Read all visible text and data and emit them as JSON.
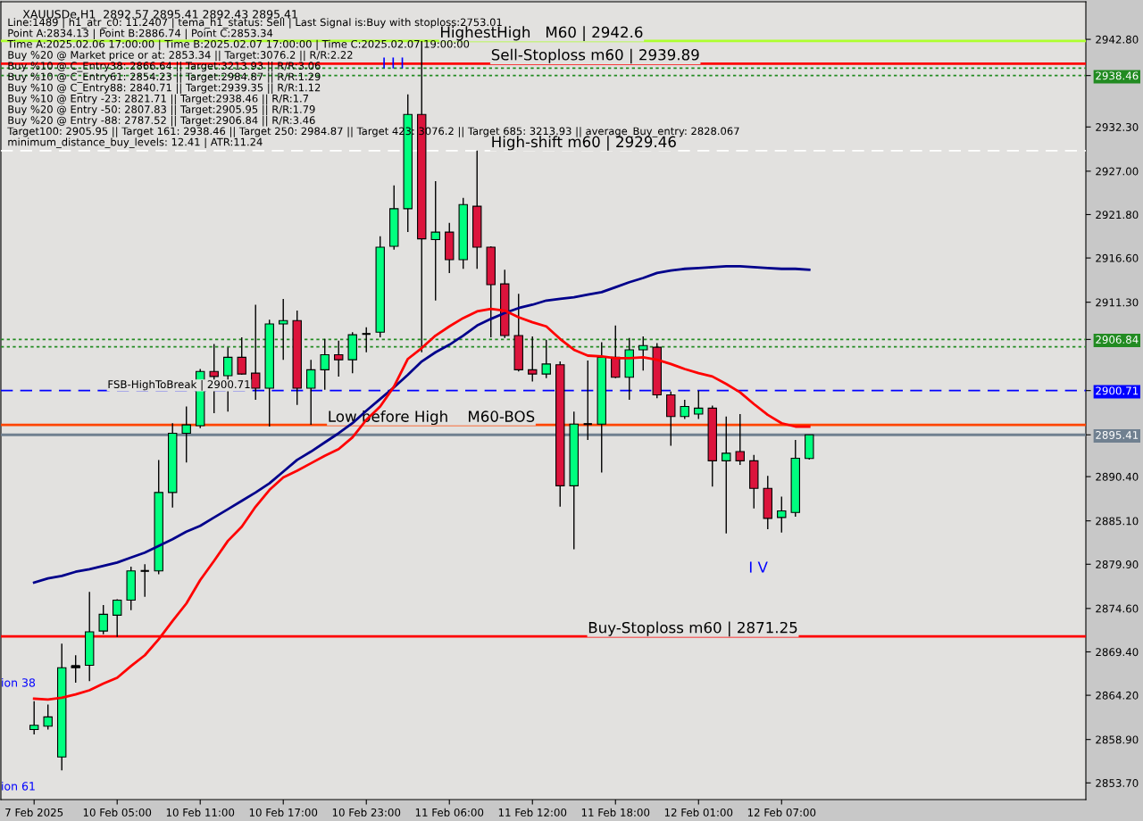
{
  "chart_data": {
    "type": "candlestick",
    "title": "XAUUSDe,H1  2892.57 2895.41 2892.43 2895.41",
    "categories": [
      "7 Feb 2025",
      null,
      null,
      null,
      null,
      null,
      "10 Feb 05:00",
      null,
      null,
      null,
      null,
      null,
      "10 Feb 11:00",
      null,
      null,
      null,
      null,
      null,
      "10 Feb 17:00",
      null,
      null,
      null,
      null,
      null,
      "10 Feb 23:00",
      null,
      null,
      null,
      null,
      null,
      "11 Feb 06:00",
      null,
      null,
      null,
      null,
      null,
      "11 Feb 12:00",
      null,
      null,
      null,
      null,
      null,
      "11 Feb 18:00",
      null,
      null,
      null,
      null,
      null,
      "12 Feb 01:00",
      null,
      null,
      null,
      null,
      null,
      "12 Feb 07:00",
      null,
      null
    ],
    "ohlc": [
      [
        2860.1,
        2863.5,
        2859.5,
        2860.6
      ],
      [
        2860.5,
        2863.1,
        2860.1,
        2861.6
      ],
      [
        2856.8,
        2870.4,
        2855.2,
        2867.5
      ],
      [
        2867.5,
        2869.0,
        2865.7,
        2867.7
      ],
      [
        2867.8,
        2876.6,
        2865.9,
        2871.8
      ],
      [
        2871.9,
        2875.0,
        2871.5,
        2873.9
      ],
      [
        2873.8,
        2875.7,
        2871.2,
        2875.6
      ],
      [
        2875.6,
        2879.6,
        2874.4,
        2879.1
      ],
      [
        2879.1,
        2879.9,
        2876.0,
        2879.2
      ],
      [
        2879.1,
        2892.4,
        2878.7,
        2888.5
      ],
      [
        2888.5,
        2896.8,
        2886.7,
        2895.6
      ],
      [
        2895.6,
        2898.8,
        2892.1,
        2896.6
      ],
      [
        2896.5,
        2903.3,
        2896.2,
        2903.0
      ],
      [
        2903.0,
        2906.3,
        2898.0,
        2902.4
      ],
      [
        2902.5,
        2905.9,
        2898.2,
        2904.7
      ],
      [
        2904.7,
        2907.1,
        2902.6,
        2902.7
      ],
      [
        2902.8,
        2911.0,
        2899.6,
        2901.0
      ],
      [
        2901.0,
        2909.2,
        2896.4,
        2908.7
      ],
      [
        2908.7,
        2911.7,
        2904.4,
        2909.1
      ],
      [
        2909.1,
        2910.3,
        2899.0,
        2901.0
      ],
      [
        2901.0,
        2904.4,
        2896.6,
        2903.2
      ],
      [
        2903.2,
        2906.9,
        2900.8,
        2905.0
      ],
      [
        2905.0,
        2906.7,
        2902.4,
        2904.4
      ],
      [
        2904.4,
        2907.7,
        2902.8,
        2907.4
      ],
      [
        2907.5,
        2908.3,
        2905.3,
        2907.6
      ],
      [
        2907.7,
        2919.2,
        2907.1,
        2917.9
      ],
      [
        2918.0,
        2925.3,
        2917.6,
        2922.5
      ],
      [
        2922.5,
        2936.2,
        2919.7,
        2933.8
      ],
      [
        2933.8,
        2942.6,
        2905.3,
        2918.9
      ],
      [
        2918.8,
        2925.8,
        2911.5,
        2919.7
      ],
      [
        2919.7,
        2920.8,
        2914.8,
        2916.4
      ],
      [
        2916.4,
        2923.8,
        2915.3,
        2923.0
      ],
      [
        2922.8,
        2929.46,
        2915.3,
        2917.9
      ],
      [
        2917.9,
        2918.0,
        2907.1,
        2913.4
      ],
      [
        2913.5,
        2915.2,
        2907.0,
        2907.3
      ],
      [
        2907.3,
        2912.3,
        2903.0,
        2903.2
      ],
      [
        2903.2,
        2907.2,
        2901.8,
        2902.7
      ],
      [
        2902.7,
        2906.8,
        2902.2,
        2903.9
      ],
      [
        2903.8,
        2904.2,
        2886.8,
        2889.3
      ],
      [
        2889.3,
        2898.2,
        2881.7,
        2896.7
      ],
      [
        2896.7,
        2904.3,
        2894.8,
        2896.8
      ],
      [
        2896.7,
        2906.5,
        2890.9,
        2904.7
      ],
      [
        2904.7,
        2908.5,
        2902.2,
        2902.3
      ],
      [
        2902.3,
        2907.0,
        2899.6,
        2905.6
      ],
      [
        2905.6,
        2907.2,
        2903.1,
        2906.1
      ],
      [
        2905.9,
        2906.4,
        2899.8,
        2900.2
      ],
      [
        2900.2,
        2900.6,
        2894.1,
        2897.6
      ],
      [
        2897.6,
        2899.6,
        2897.3,
        2898.8
      ],
      [
        2897.9,
        2900.7,
        2897.3,
        2898.6
      ],
      [
        2898.6,
        2898.9,
        2889.2,
        2892.3
      ],
      [
        2892.3,
        2897.6,
        2883.6,
        2893.2
      ],
      [
        2893.4,
        2897.9,
        2891.8,
        2892.3
      ],
      [
        2892.3,
        2893.0,
        2886.6,
        2889.0
      ],
      [
        2889.0,
        2890.5,
        2884.1,
        2885.4
      ],
      [
        2885.5,
        2888.0,
        2883.7,
        2886.3
      ],
      [
        2886.1,
        2894.8,
        2885.6,
        2892.6
      ],
      [
        2892.57,
        2895.41,
        2892.43,
        2895.41
      ]
    ],
    "colors": [
      "#00ff7f",
      "#00ff7f",
      "#00ff7f",
      "#000000",
      "#00ff7f",
      "#00ff7f",
      "#00ff7f",
      "#00ff7f",
      "#000000",
      "#00ff7f",
      "#00ff7f",
      "#00ff7f",
      "#00ff7f",
      "#dc143c",
      "#00ff7f",
      "#dc143c",
      "#dc143c",
      "#00ff7f",
      "#00ff7f",
      "#dc143c",
      "#00ff7f",
      "#00ff7f",
      "#dc143c",
      "#00ff7f",
      "#000000",
      "#00ff7f",
      "#00ff7f",
      "#00ff7f",
      "#dc143c",
      "#00ff7f",
      "#dc143c",
      "#00ff7f",
      "#dc143c",
      "#dc143c",
      "#dc143c",
      "#dc143c",
      "#dc143c",
      "#00ff7f",
      "#dc143c",
      "#00ff7f",
      "#000000",
      "#00ff7f",
      "#dc143c",
      "#00ff7f",
      "#00ff7f",
      "#dc143c",
      "#dc143c",
      "#00ff7f",
      "#00ff7f",
      "#dc143c",
      "#00ff7f",
      "#dc143c",
      "#dc143c",
      "#dc143c",
      "#00ff7f",
      "#00ff7f",
      "#00ff7f"
    ],
    "series": [
      {
        "type": "line",
        "color": "#00008b",
        "values": [
          2877.7,
          2878.2,
          2878.5,
          2879.0,
          2879.3,
          2879.7,
          2880.1,
          2880.7,
          2881.3,
          2882.1,
          2882.9,
          2883.8,
          2884.5,
          2885.5,
          2886.5,
          2887.5,
          2888.5,
          2889.6,
          2891.0,
          2892.4,
          2893.4,
          2894.5,
          2895.6,
          2896.8,
          2898.3,
          2899.7,
          2901.1,
          2902.6,
          2904.2,
          2905.3,
          2906.2,
          2907.3,
          2908.5,
          2909.3,
          2910.0,
          2910.6,
          2911.0,
          2911.5,
          2911.7,
          2911.9,
          2912.2,
          2912.5,
          2913.1,
          2913.7,
          2914.2,
          2914.8,
          2915.1,
          2915.3,
          2915.4,
          2915.5,
          2915.6,
          2915.6,
          2915.5,
          2915.4,
          2915.3,
          2915.3,
          2915.2
        ]
      },
      {
        "type": "line",
        "color": "#ff0000",
        "values": [
          2863.8,
          2863.7,
          2863.9,
          2864.3,
          2864.8,
          2865.6,
          2866.3,
          2867.7,
          2869.0,
          2870.9,
          2873.1,
          2875.2,
          2878.0,
          2880.3,
          2882.7,
          2884.4,
          2886.8,
          2888.8,
          2890.3,
          2891.1,
          2892.0,
          2892.9,
          2893.7,
          2895.1,
          2897.2,
          2898.8,
          2901.2,
          2904.5,
          2905.8,
          2907.3,
          2908.4,
          2909.4,
          2910.2,
          2910.5,
          2910.3,
          2909.5,
          2908.9,
          2908.4,
          2906.9,
          2905.6,
          2904.9,
          2904.8,
          2904.6,
          2904.6,
          2904.7,
          2904.4,
          2903.9,
          2903.3,
          2902.8,
          2902.4,
          2901.5,
          2900.5,
          2899.1,
          2897.8,
          2896.8,
          2896.4,
          2896.4
        ]
      }
    ],
    "ylim": [
      2851.7,
      2947.3
    ],
    "yticks": [
      {
        "value": 2942.8,
        "label": "2942.80"
      },
      {
        "value": 2938.46,
        "label": "2938.46"
      },
      {
        "value": 2932.3,
        "label": "2932.30"
      },
      {
        "value": 2927.0,
        "label": "2927.00"
      },
      {
        "value": 2921.8,
        "label": "2921.80"
      },
      {
        "value": 2916.6,
        "label": "2916.60"
      },
      {
        "value": 2911.3,
        "label": "2911.30"
      },
      {
        "value": 2906.84,
        "label": "2906.84"
      },
      {
        "value": 2900.71,
        "label": "2900.71"
      },
      {
        "value": 2895.41,
        "label": "2895.41"
      },
      {
        "value": 2890.4,
        "label": "2890.40"
      },
      {
        "value": 2885.1,
        "label": "2885.10"
      },
      {
        "value": 2879.9,
        "label": "2879.90"
      },
      {
        "value": 2874.6,
        "label": "2874.60"
      },
      {
        "value": 2869.4,
        "label": "2869.40"
      },
      {
        "value": 2864.2,
        "label": "2864.20"
      },
      {
        "value": 2858.9,
        "label": "2858.90"
      },
      {
        "value": 2853.7,
        "label": "2853.70"
      }
    ],
    "ref_lines": [
      {
        "axis": "y",
        "value": 2942.6,
        "label": "HighestHigh   M60 | 2942.6",
        "color": "#adff2f",
        "line_style": "solid"
      },
      {
        "axis": "y",
        "value": 2939.89,
        "label": "Sell-Stoploss m60 | 2939.89",
        "color": "#ff0000",
        "line_style": "solid"
      },
      {
        "axis": "y",
        "value": 2939.35,
        "label": null,
        "color": "#228b22",
        "line_style": "dotted"
      },
      {
        "axis": "y",
        "value": 2938.46,
        "label": null,
        "color": "#228b22",
        "line_style": "dotted"
      },
      {
        "axis": "y",
        "value": 2929.46,
        "label": "High-shift m60 | 2929.46",
        "color": "#ffffff",
        "line_style": "dashed"
      },
      {
        "axis": "y",
        "value": 2906.84,
        "label": null,
        "color": "#228b22",
        "line_style": "dotted"
      },
      {
        "axis": "y",
        "value": 2905.95,
        "label": null,
        "color": "#228b22",
        "line_style": "dotted"
      },
      {
        "axis": "y",
        "value": 2900.71,
        "label": "FSB-HighToBreak | 2900.71",
        "color": "#0000ff",
        "line_style": "dashed"
      },
      {
        "axis": "y",
        "value": 2896.6,
        "label": "Low before High    M60-BOS",
        "color": "#ff4500",
        "line_style": "solid"
      },
      {
        "axis": "y",
        "value": 2895.41,
        "label": null,
        "color": "#708090",
        "line_style": "solid"
      },
      {
        "axis": "y",
        "value": 2871.25,
        "label": "Buy-Stoploss m60 | 2871.25",
        "color": "#ff0000",
        "line_style": "solid"
      }
    ],
    "annotations": [
      "Line:1489 | h1_atr_c0: 11.2407 | tema_h1_status: Sell | Last Signal is:Buy with stoploss:2753.01",
      "Point A:2834.13 | Point B:2886.74 | Point C:2853.34",
      "Time A:2025.02.06 17:00:00 | Time B:2025.02.07 17:00:00 | Time C:2025.02.07 19:00:00",
      "Buy %20 @ Market price or at: 2853.34 || Target:3076.2 || R/R:2.22",
      "Buy %10 @ C_Entry38: 2866.64 || Target:3213.93 || R/R:3.06",
      "Buy %10 @ C_Entry61: 2854.23 || Target:2984.87 || R/R:1.29",
      "Buy %10 @ C_Entry88: 2840.71 || Target:2939.35 || R/R:1.12",
      "Buy %10 @ Entry -23: 2821.71 || Target:2938.46 || R/R:1.7",
      "Buy %20 @ Entry -50: 2807.83 || Target:2905.95 || R/R:1.79",
      "Buy %20 @ Entry -88: 2787.52 || Target:2906.84 || R/R:3.46",
      "Target100: 2905.95 || Target 161: 2938.46 || Target 250: 2984.87 || Target 423: 3076.2 || Target 685: 3213.93 || average_Buy_entry: 2828.067",
      "minimum_distance_buy_levels: 12.41 | ATR:11.24",
      "I I I",
      "I V",
      "ion 38",
      "ion 61"
    ],
    "grid": false,
    "legend": false
  }
}
